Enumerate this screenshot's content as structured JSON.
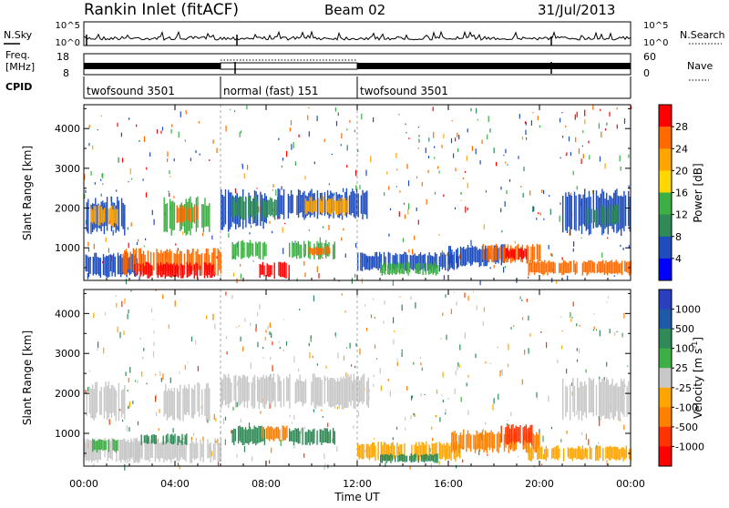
{
  "header": {
    "station": "Rankin Inlet (fitACF)",
    "beam": "Beam 02",
    "date": "31/Jul/2013"
  },
  "top_panels": {
    "nsky_label": "N.Sky",
    "nsky_ticks": [
      "10^5",
      "10^0"
    ],
    "nsearch_label": "N.Search",
    "nsearch_ticks": [
      "10^5",
      "10^0"
    ],
    "freq_label_1": "Freq.",
    "freq_label_2": "[MHz]",
    "freq_ticks": [
      "18",
      "8"
    ],
    "nave_label": "Nave",
    "nave_ticks": [
      "60",
      "0"
    ],
    "cpid_label": "CPID",
    "cpid_segments": [
      {
        "label": "twofsound 3501",
        "start_h": 0,
        "end_h": 6
      },
      {
        "label": "normal (fast) 151",
        "start_h": 6,
        "end_h": 12
      },
      {
        "label": "twofsound 3501",
        "start_h": 12,
        "end_h": 24
      }
    ]
  },
  "chart_data": [
    {
      "type": "heatmap",
      "name": "power",
      "ylabel": "Slant Range [km]",
      "x_range_h": [
        0,
        24
      ],
      "ylim": [
        180,
        4600
      ],
      "yticks": [
        1000,
        2000,
        3000,
        4000
      ],
      "colorbar": {
        "label": "Power [dB]",
        "ticks": [
          "28",
          "24",
          "20",
          "16",
          "12",
          "8",
          "4"
        ],
        "colors": [
          "#ff0000",
          "#ff6a00",
          "#ffa500",
          "#ffd700",
          "#3cb043",
          "#2e8b57",
          "#1e4dbf",
          "#0000ff"
        ]
      },
      "regions": [
        {
          "t0": 0.1,
          "t1": 1.8,
          "r0": 1300,
          "r1": 2300,
          "c": "#1e4dbf"
        },
        {
          "t0": 0.3,
          "t1": 1.5,
          "r0": 1500,
          "r1": 2100,
          "c": "#ffa500"
        },
        {
          "t0": 0.0,
          "t1": 2.5,
          "r0": 250,
          "r1": 900,
          "c": "#1e4dbf"
        },
        {
          "t0": 1.7,
          "t1": 6.0,
          "r0": 300,
          "r1": 1000,
          "c": "#ff6a00"
        },
        {
          "t0": 2.2,
          "t1": 5.8,
          "r0": 220,
          "r1": 650,
          "c": "#ff0000"
        },
        {
          "t0": 3.5,
          "t1": 5.5,
          "r0": 1300,
          "r1": 2300,
          "c": "#3cb043"
        },
        {
          "t0": 4.0,
          "t1": 5.0,
          "r0": 1600,
          "r1": 2100,
          "c": "#ff6a00"
        },
        {
          "t0": 6.0,
          "t1": 8.0,
          "r0": 1400,
          "r1": 2500,
          "c": "#1e4dbf"
        },
        {
          "t0": 6.5,
          "t1": 8.5,
          "r0": 1700,
          "r1": 2300,
          "c": "#2e8b57"
        },
        {
          "t0": 6.5,
          "t1": 8.0,
          "r0": 700,
          "r1": 1200,
          "c": "#3cb043"
        },
        {
          "t0": 7.7,
          "t1": 9.0,
          "r0": 220,
          "r1": 650,
          "c": "#ff0000"
        },
        {
          "t0": 8.5,
          "t1": 12.5,
          "r0": 1700,
          "r1": 2500,
          "c": "#1e4dbf"
        },
        {
          "t0": 9.7,
          "t1": 11.6,
          "r0": 1800,
          "r1": 2300,
          "c": "#ffa500"
        },
        {
          "t0": 9.0,
          "t1": 11.0,
          "r0": 700,
          "r1": 1200,
          "c": "#3cb043"
        },
        {
          "t0": 9.8,
          "t1": 10.8,
          "r0": 800,
          "r1": 1050,
          "c": "#ff6a00"
        },
        {
          "t0": 12.0,
          "t1": 16.5,
          "r0": 400,
          "r1": 900,
          "c": "#1e4dbf"
        },
        {
          "t0": 13.0,
          "t1": 15.5,
          "r0": 300,
          "r1": 650,
          "c": "#3cb043"
        },
        {
          "t0": 16.0,
          "t1": 18.5,
          "r0": 500,
          "r1": 1100,
          "c": "#1e4dbf"
        },
        {
          "t0": 17.5,
          "t1": 20.0,
          "r0": 600,
          "r1": 1100,
          "c": "#ff6a00"
        },
        {
          "t0": 18.5,
          "t1": 19.5,
          "r0": 700,
          "r1": 1000,
          "c": "#ff0000"
        },
        {
          "t0": 19.5,
          "t1": 24.0,
          "r0": 300,
          "r1": 700,
          "c": "#ff6a00"
        },
        {
          "t0": 21.0,
          "t1": 24.0,
          "r0": 1300,
          "r1": 2500,
          "c": "#1e4dbf"
        },
        {
          "t0": 22.0,
          "t1": 23.5,
          "r0": 1500,
          "r1": 2100,
          "c": "#2e8b57"
        }
      ]
    },
    {
      "type": "heatmap",
      "name": "velocity",
      "ylabel": "Slant Range [km]",
      "xlabel": "Time UT",
      "x_range_h": [
        0,
        24
      ],
      "xticks": [
        "00:00",
        "04:00",
        "08:00",
        "12:00",
        "16:00",
        "20:00",
        "00:00"
      ],
      "ylim": [
        180,
        4600
      ],
      "yticks": [
        1000,
        2000,
        3000,
        4000
      ],
      "colorbar": {
        "label": "Velocity [m s",
        "label_sup": "-1",
        "label_end": "]",
        "ticks": [
          "1000",
          "500",
          "100",
          "25",
          "-25",
          "-100",
          "-500",
          "-1000"
        ],
        "colors": [
          "#2a3fbf",
          "#1e5aa8",
          "#2e8b57",
          "#3cb043",
          "#c8c8c8",
          "#ffa500",
          "#ff7f00",
          "#ff3300",
          "#ff0000"
        ]
      },
      "regions": [
        {
          "t0": 0.1,
          "t1": 1.8,
          "r0": 1300,
          "r1": 2300,
          "c": "#c8c8c8"
        },
        {
          "t0": 0.0,
          "t1": 2.5,
          "r0": 250,
          "r1": 900,
          "c": "#c8c8c8"
        },
        {
          "t0": 0.3,
          "t1": 1.5,
          "r0": 500,
          "r1": 900,
          "c": "#3cb043"
        },
        {
          "t0": 1.7,
          "t1": 6.0,
          "r0": 250,
          "r1": 900,
          "c": "#c8c8c8"
        },
        {
          "t0": 2.5,
          "t1": 4.5,
          "r0": 700,
          "r1": 1000,
          "c": "#2e8b57"
        },
        {
          "t0": 3.5,
          "t1": 5.5,
          "r0": 1300,
          "r1": 2300,
          "c": "#c8c8c8"
        },
        {
          "t0": 6.0,
          "t1": 12.5,
          "r0": 1600,
          "r1": 2500,
          "c": "#c8c8c8"
        },
        {
          "t0": 6.5,
          "t1": 8.0,
          "r0": 700,
          "r1": 1200,
          "c": "#2e8b57"
        },
        {
          "t0": 7.8,
          "t1": 9.0,
          "r0": 800,
          "r1": 1200,
          "c": "#ff7f00"
        },
        {
          "t0": 9.0,
          "t1": 11.0,
          "r0": 700,
          "r1": 1150,
          "c": "#2e8b57"
        },
        {
          "t0": 12.0,
          "t1": 16.5,
          "r0": 300,
          "r1": 800,
          "c": "#ffa500"
        },
        {
          "t0": 13.0,
          "t1": 15.5,
          "r0": 250,
          "r1": 500,
          "c": "#2e8b57"
        },
        {
          "t0": 16.0,
          "t1": 20.0,
          "r0": 500,
          "r1": 1100,
          "c": "#ff7f00"
        },
        {
          "t0": 18.3,
          "t1": 19.7,
          "r0": 700,
          "r1": 1250,
          "c": "#ff3300"
        },
        {
          "t0": 19.5,
          "t1": 24.0,
          "r0": 300,
          "r1": 700,
          "c": "#ffa500"
        },
        {
          "t0": 21.0,
          "t1": 24.0,
          "r0": 1300,
          "r1": 2400,
          "c": "#c8c8c8"
        }
      ]
    }
  ]
}
